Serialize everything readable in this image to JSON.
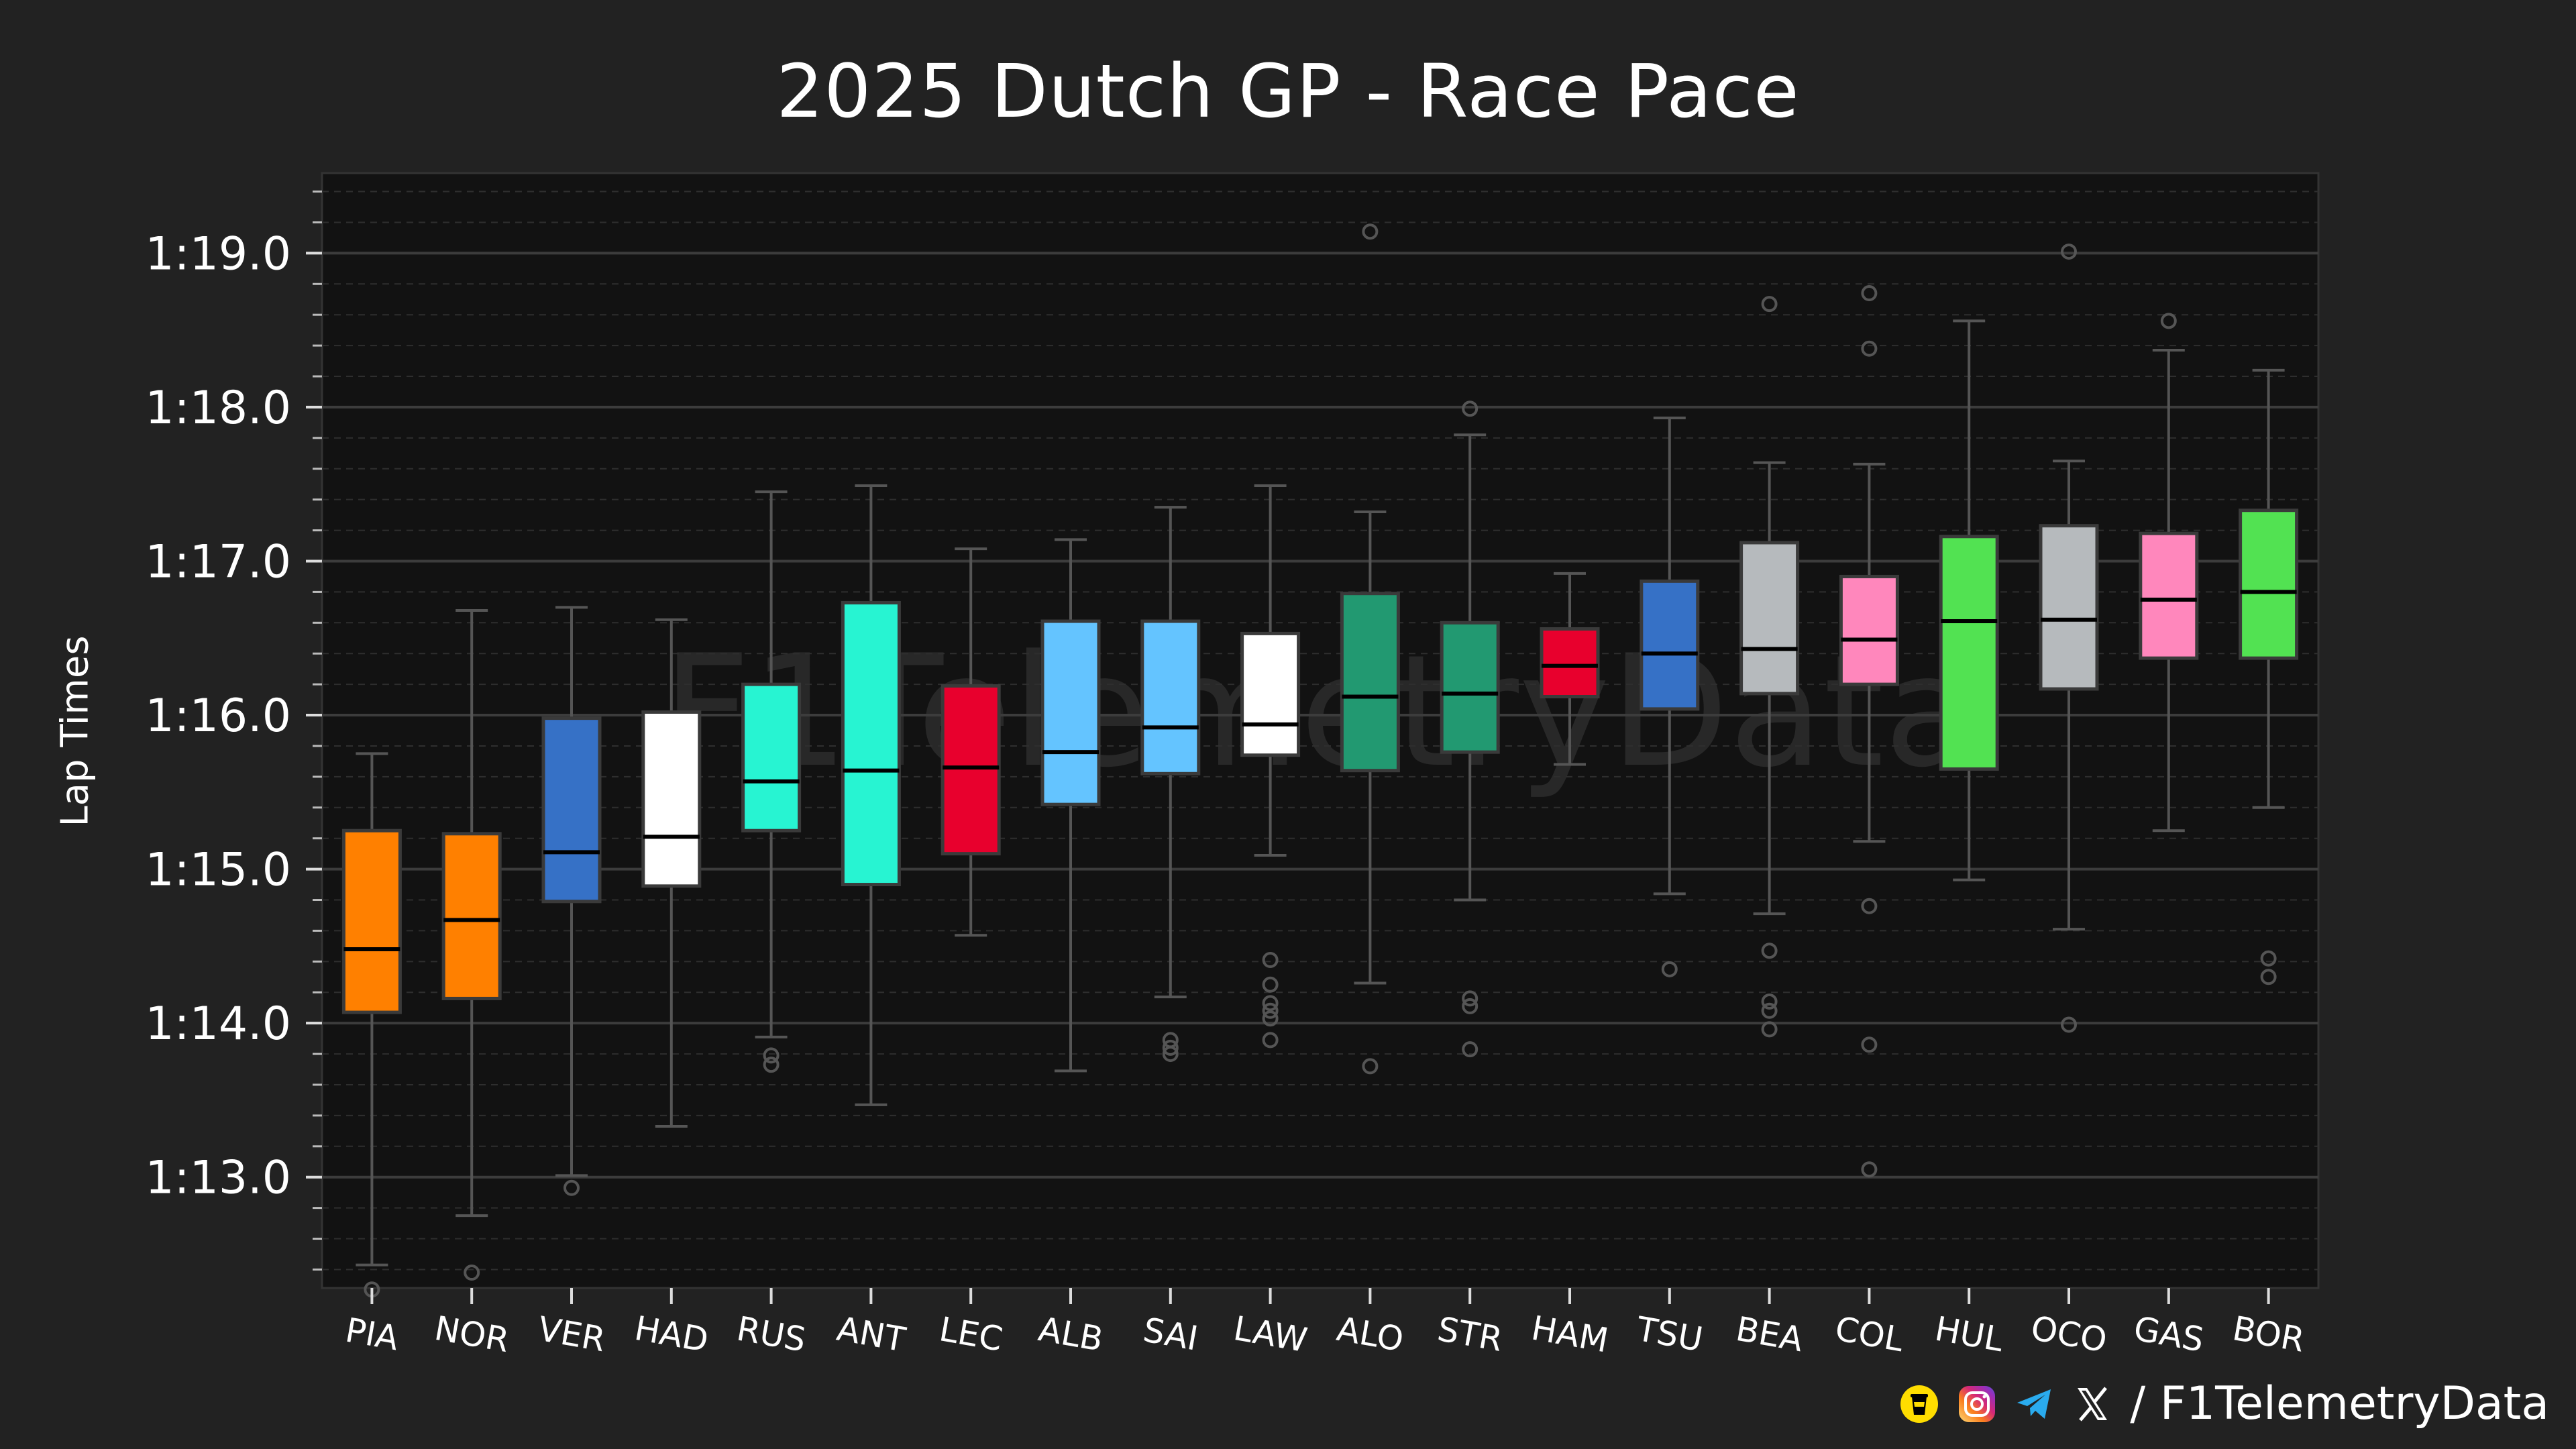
{
  "chart_data": {
    "type": "box",
    "title": "2025 Dutch GP - Race Pace",
    "ylabel": "Lap Times",
    "xlabel": "",
    "yticks": [
      {
        "value": 73,
        "label": "1:13.0"
      },
      {
        "value": 74,
        "label": "1:14.0"
      },
      {
        "value": 75,
        "label": "1:15.0"
      },
      {
        "value": 76,
        "label": "1:16.0"
      },
      {
        "value": 77,
        "label": "1:17.0"
      },
      {
        "value": 78,
        "label": "1:18.0"
      },
      {
        "value": 79,
        "label": "1:19.0"
      }
    ],
    "ylim": [
      72.28,
      79.52
    ],
    "grid": true,
    "watermark": "F1TelemetryData",
    "drivers": [
      {
        "name": "PIA",
        "color": "#FF8000",
        "whisker_low": 72.43,
        "q1": 74.07,
        "median": 74.48,
        "q3": 75.25,
        "whisker_high": 75.75,
        "outliers": [
          72.27
        ]
      },
      {
        "name": "NOR",
        "color": "#FF8000",
        "whisker_low": 72.75,
        "q1": 74.16,
        "median": 74.67,
        "q3": 75.23,
        "whisker_high": 76.68,
        "outliers": [
          72.38
        ]
      },
      {
        "name": "VER",
        "color": "#3671C6",
        "whisker_low": 73.01,
        "q1": 74.79,
        "median": 75.11,
        "q3": 75.98,
        "whisker_high": 76.7,
        "outliers": [
          72.93
        ]
      },
      {
        "name": "HAD",
        "color": "#FFFFFF",
        "whisker_low": 73.33,
        "q1": 74.89,
        "median": 75.21,
        "q3": 76.02,
        "whisker_high": 76.62,
        "outliers": []
      },
      {
        "name": "RUS",
        "color": "#27F4D2",
        "whisker_low": 73.91,
        "q1": 75.25,
        "median": 75.57,
        "q3": 76.2,
        "whisker_high": 77.45,
        "outliers": [
          73.73,
          73.79
        ]
      },
      {
        "name": "ANT",
        "color": "#27F4D2",
        "whisker_low": 73.47,
        "q1": 74.9,
        "median": 75.64,
        "q3": 76.73,
        "whisker_high": 77.49,
        "outliers": []
      },
      {
        "name": "LEC",
        "color": "#E8002D",
        "whisker_low": 74.57,
        "q1": 75.1,
        "median": 75.66,
        "q3": 76.19,
        "whisker_high": 77.08,
        "outliers": []
      },
      {
        "name": "ALB",
        "color": "#64C4FF",
        "whisker_low": 73.69,
        "q1": 75.42,
        "median": 75.76,
        "q3": 76.61,
        "whisker_high": 77.14,
        "outliers": []
      },
      {
        "name": "SAI",
        "color": "#64C4FF",
        "whisker_low": 74.17,
        "q1": 75.62,
        "median": 75.92,
        "q3": 76.61,
        "whisker_high": 77.35,
        "outliers": [
          73.8,
          73.84,
          73.89
        ]
      },
      {
        "name": "LAW",
        "color": "#FFFFFF",
        "whisker_low": 75.09,
        "q1": 75.74,
        "median": 75.94,
        "q3": 76.53,
        "whisker_high": 77.49,
        "outliers": [
          73.89,
          74.03,
          74.08,
          74.13,
          74.25,
          74.41
        ]
      },
      {
        "name": "ALO",
        "color": "#229971",
        "whisker_low": 74.26,
        "q1": 75.64,
        "median": 76.12,
        "q3": 76.79,
        "whisker_high": 77.32,
        "outliers": [
          73.72,
          79.14
        ]
      },
      {
        "name": "STR",
        "color": "#229971",
        "whisker_low": 74.8,
        "q1": 75.76,
        "median": 76.14,
        "q3": 76.6,
        "whisker_high": 77.82,
        "outliers": [
          73.83,
          74.11,
          74.16,
          77.99
        ]
      },
      {
        "name": "HAM",
        "color": "#E8002D",
        "whisker_low": 75.68,
        "q1": 76.12,
        "median": 76.32,
        "q3": 76.56,
        "whisker_high": 76.92,
        "outliers": []
      },
      {
        "name": "TSU",
        "color": "#3671C6",
        "whisker_low": 74.84,
        "q1": 76.04,
        "median": 76.4,
        "q3": 76.87,
        "whisker_high": 77.93,
        "outliers": [
          74.35
        ]
      },
      {
        "name": "BEA",
        "color": "#B6BABD",
        "whisker_low": 74.71,
        "q1": 76.14,
        "median": 76.43,
        "q3": 77.12,
        "whisker_high": 77.64,
        "outliers": [
          73.96,
          74.08,
          74.14,
          74.47,
          78.67
        ]
      },
      {
        "name": "COL",
        "color": "#FF87BC",
        "whisker_low": 75.18,
        "q1": 76.2,
        "median": 76.49,
        "q3": 76.9,
        "whisker_high": 77.63,
        "outliers": [
          73.05,
          73.86,
          74.76,
          78.38,
          78.74
        ]
      },
      {
        "name": "HUL",
        "color": "#52E252",
        "whisker_low": 74.93,
        "q1": 75.65,
        "median": 76.61,
        "q3": 77.16,
        "whisker_high": 78.56,
        "outliers": []
      },
      {
        "name": "OCO",
        "color": "#B6BABD",
        "whisker_low": 74.61,
        "q1": 76.17,
        "median": 76.62,
        "q3": 77.23,
        "whisker_high": 77.65,
        "outliers": [
          73.99,
          79.01
        ]
      },
      {
        "name": "GAS",
        "color": "#FF87BC",
        "whisker_low": 75.25,
        "q1": 76.37,
        "median": 76.75,
        "q3": 77.18,
        "whisker_high": 78.37,
        "outliers": [
          78.56
        ]
      },
      {
        "name": "BOR",
        "color": "#52E252",
        "whisker_low": 75.4,
        "q1": 76.37,
        "median": 76.8,
        "q3": 77.33,
        "whisker_high": 78.24,
        "outliers": [
          74.3,
          74.42
        ]
      }
    ]
  },
  "footer": {
    "handle": "/ F1TelemetryData",
    "icons": [
      "buymeacoffee-icon",
      "instagram-icon",
      "telegram-icon",
      "x-icon"
    ]
  }
}
